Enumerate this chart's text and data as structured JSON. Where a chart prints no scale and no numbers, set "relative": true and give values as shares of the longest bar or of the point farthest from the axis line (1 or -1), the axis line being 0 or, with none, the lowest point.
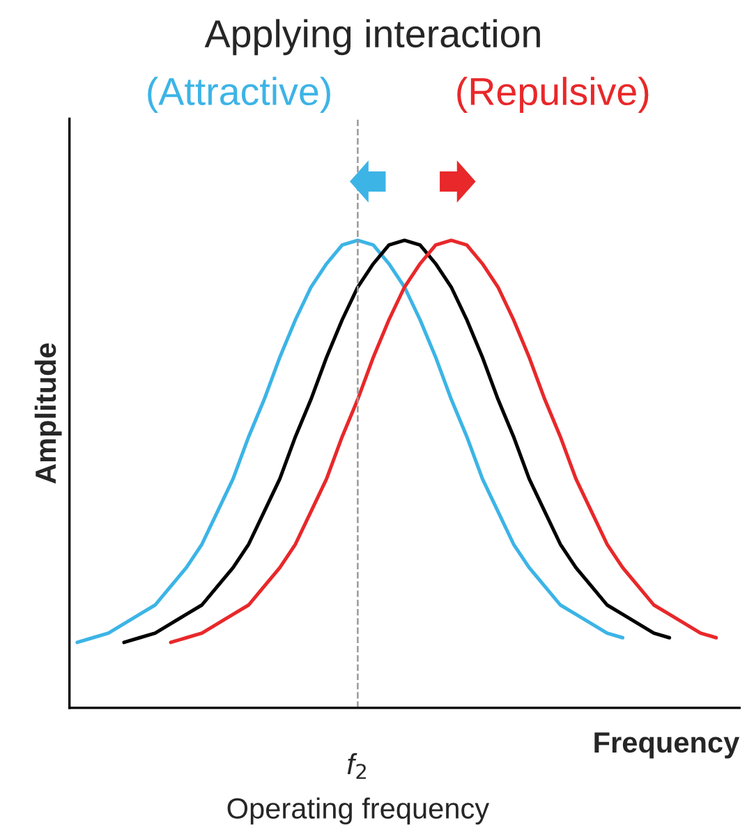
{
  "chart_data": {
    "type": "line",
    "title": "Applying interaction",
    "xlabel": "Frequency",
    "ylabel": "Amplitude",
    "relative": true,
    "legend": false,
    "categories": [
      null,
      null,
      null,
      null,
      null,
      null,
      null,
      null,
      null,
      null,
      null,
      null,
      null,
      null,
      null,
      null,
      null,
      null,
      null,
      null,
      null,
      null,
      null,
      null,
      null,
      null,
      null,
      null,
      null,
      null,
      null,
      null,
      null,
      null,
      null,
      null,
      null,
      null,
      null,
      null,
      null,
      null,
      null
    ],
    "series": [
      {
        "name": "(Attractive)",
        "color": "#3cb4e6",
        "values": [
          0.14,
          0.15,
          0.16,
          0.18,
          0.2,
          0.22,
          0.26,
          0.3,
          0.35,
          0.42,
          0.49,
          0.58,
          0.66,
          0.75,
          0.83,
          0.9,
          0.95,
          0.99,
          1.0,
          0.99,
          0.95,
          0.9,
          0.83,
          0.75,
          0.66,
          0.58,
          0.49,
          0.42,
          0.35,
          0.3,
          0.26,
          0.22,
          0.2,
          0.18,
          0.16,
          0.15,
          null,
          null,
          null,
          null,
          null,
          null,
          null
        ]
      },
      {
        "color": "#000000",
        "values": [
          null,
          null,
          null,
          0.14,
          0.15,
          0.16,
          0.18,
          0.2,
          0.22,
          0.26,
          0.3,
          0.35,
          0.42,
          0.49,
          0.58,
          0.66,
          0.75,
          0.83,
          0.9,
          0.95,
          0.99,
          1.0,
          0.99,
          0.95,
          0.9,
          0.83,
          0.75,
          0.66,
          0.58,
          0.49,
          0.42,
          0.35,
          0.3,
          0.26,
          0.22,
          0.2,
          0.18,
          0.16,
          0.15,
          null,
          null,
          null,
          null
        ]
      },
      {
        "name": "(Repulsive)",
        "color": "#e8282a",
        "values": [
          null,
          null,
          null,
          null,
          null,
          null,
          0.14,
          0.15,
          0.16,
          0.18,
          0.2,
          0.22,
          0.26,
          0.3,
          0.35,
          0.42,
          0.49,
          0.58,
          0.66,
          0.75,
          0.83,
          0.9,
          0.95,
          0.99,
          1.0,
          0.99,
          0.95,
          0.9,
          0.83,
          0.75,
          0.66,
          0.58,
          0.49,
          0.42,
          0.35,
          0.3,
          0.26,
          0.22,
          0.2,
          0.18,
          0.16,
          0.15,
          null
        ]
      }
    ],
    "annotations": [
      "f$_{2}$",
      "Operating frequency"
    ]
  }
}
